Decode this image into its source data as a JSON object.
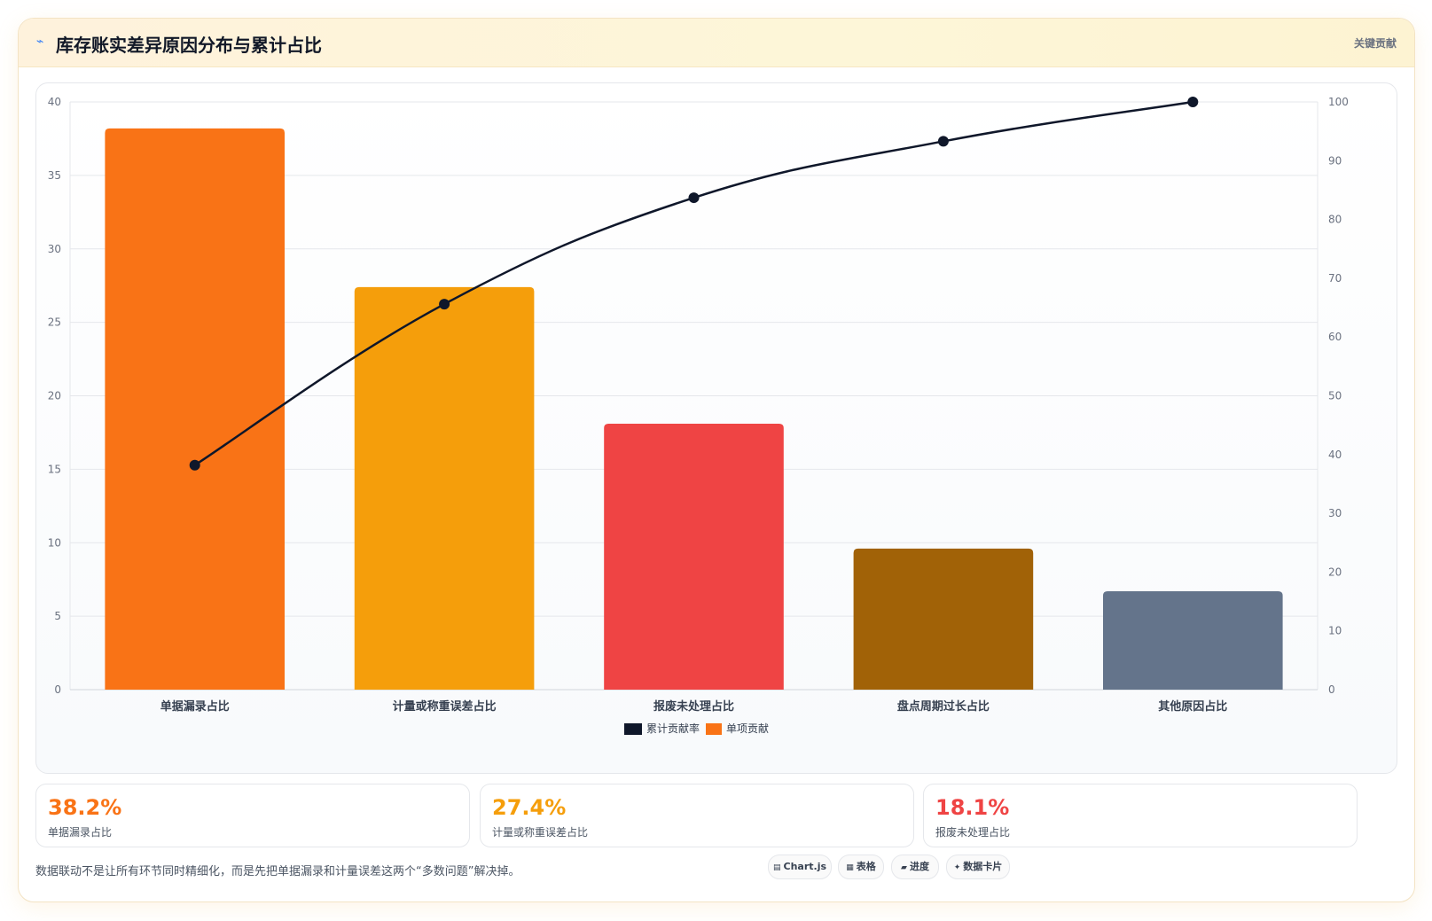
{
  "header": {
    "icon": "chart-icon",
    "title": "库存账实差异原因分布与累计占比",
    "tag": "关键贡献"
  },
  "chart_data": {
    "type": "bar",
    "categories": [
      "单据漏录占比",
      "计量或称重误差占比",
      "报废未处理占比",
      "盘点周期过长占比",
      "其他原因占比"
    ],
    "series": [
      {
        "name": "单项贡献",
        "type": "bar",
        "axis": "left",
        "values": [
          38.2,
          27.4,
          18.1,
          9.6,
          6.7
        ],
        "colors": [
          "#f97316",
          "#f59e0b",
          "#ef4444",
          "#a16207",
          "#64748b"
        ]
      },
      {
        "name": "累计贡献率",
        "type": "line",
        "axis": "right",
        "values": [
          38.2,
          65.6,
          83.7,
          93.3,
          100
        ],
        "color": "#0f172a"
      }
    ],
    "ylim": [
      0,
      40
    ],
    "yticks": [
      0,
      5,
      10,
      15,
      20,
      25,
      30,
      35,
      40
    ],
    "y2lim": [
      0,
      100
    ],
    "y2ticks": [
      0,
      10,
      20,
      30,
      40,
      50,
      60,
      70,
      80,
      90,
      100
    ],
    "legend": [
      "累计贡献率",
      "单项贡献"
    ],
    "legend_colors": [
      "#0f172a",
      "#f97316"
    ],
    "legend_position": "bottom-center",
    "grid": true
  },
  "stats": [
    {
      "value": "38.2%",
      "label": "单据漏录占比",
      "color": "#f97316"
    },
    {
      "value": "27.4%",
      "label": "计量或称重误差占比",
      "color": "#f59e0b"
    },
    {
      "value": "18.1%",
      "label": "报废未处理占比",
      "color": "#ef4444"
    }
  ],
  "footer": {
    "note": "数据联动不是让所有环节同时精细化，而是先把单据漏录和计量误差这两个“多数问题”解决掉。",
    "chips": [
      {
        "icon": "▤",
        "label": "Chart.js"
      },
      {
        "icon": "▦",
        "label": "表格"
      },
      {
        "icon": "▰",
        "label": "进度"
      },
      {
        "icon": "✦",
        "label": "数据卡片"
      }
    ]
  }
}
